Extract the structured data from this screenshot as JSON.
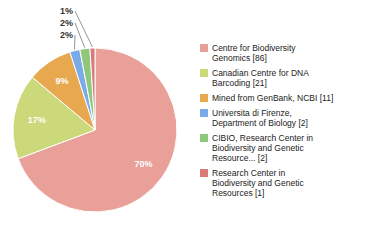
{
  "chart_data": {
    "type": "pie",
    "categories": [
      "Centre for Biodiversity\nGenomics [86]",
      "Canadian Centre for DNA\nBarcoding [21]",
      "Mined from GenBank, NCBI [11]",
      "Universita di Firenze,\nDepartment of Biology [2]",
      "CIBIO, Research Center in\nBiodiversity and Genetic\nResource... [2]",
      "Research Center in\nBiodiversity and Genetic\nResources [1]"
    ],
    "values": [
      70,
      17,
      9,
      2,
      2,
      1
    ],
    "value_labels": [
      "70%",
      "17%",
      "9%",
      "2%",
      "2%",
      "1%"
    ],
    "colors": [
      "#e8a098",
      "#ccd97a",
      "#e8a850",
      "#7aabe8",
      "#8fc87a",
      "#d97a7a"
    ],
    "data_labels": true,
    "legend": "right"
  }
}
